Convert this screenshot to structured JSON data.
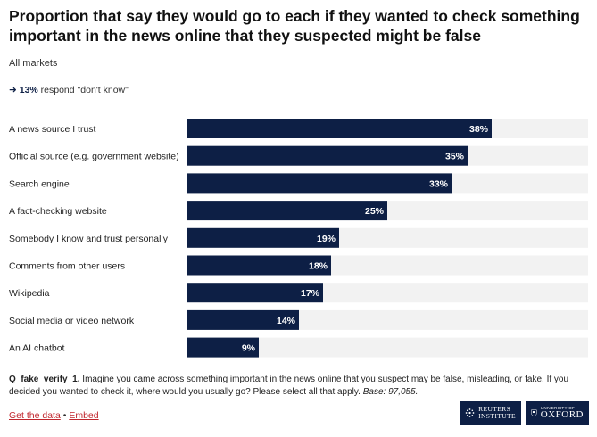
{
  "title": "Proportion that say they would go to each if they wanted to check something important in the news online that they suspected might be false",
  "subtitle": "All markets",
  "dont_know": {
    "arrow": "➜",
    "value": "13%",
    "text": "respond \"don't know\""
  },
  "chart_data": {
    "type": "bar",
    "orientation": "horizontal",
    "categories": [
      "A news source I trust",
      "Official source (e.g. government website)",
      "Search engine",
      "A fact-checking website",
      "Somebody I know and trust personally",
      "Comments from other users",
      "Wikipedia",
      "Social media or video network",
      "An AI chatbot"
    ],
    "values": [
      38,
      35,
      33,
      25,
      19,
      18,
      17,
      14,
      9
    ],
    "value_labels": [
      "38%",
      "35%",
      "33%",
      "25%",
      "19%",
      "18%",
      "17%",
      "14%",
      "9%"
    ],
    "xlim": [
      0,
      50
    ],
    "bar_color": "#0d1f45",
    "track_color": "#f2f2f2",
    "label_color": "#ffffff"
  },
  "footnote": {
    "code": "Q_fake_verify_1.",
    "text": " Imagine you came across something important in the news online that you suspect may be false, misleading, or fake. If you decided you wanted to check it, where would you usually go? Please select all that apply. ",
    "base": "Base: 97,055."
  },
  "links": {
    "get_data": "Get the data",
    "separator": " • ",
    "embed": "Embed"
  },
  "logos": {
    "reuters_line1": "REUTERS",
    "reuters_line2": "INSTITUTE",
    "oxford_small": "UNIVERSITY OF",
    "oxford_big": "OXFORD"
  }
}
